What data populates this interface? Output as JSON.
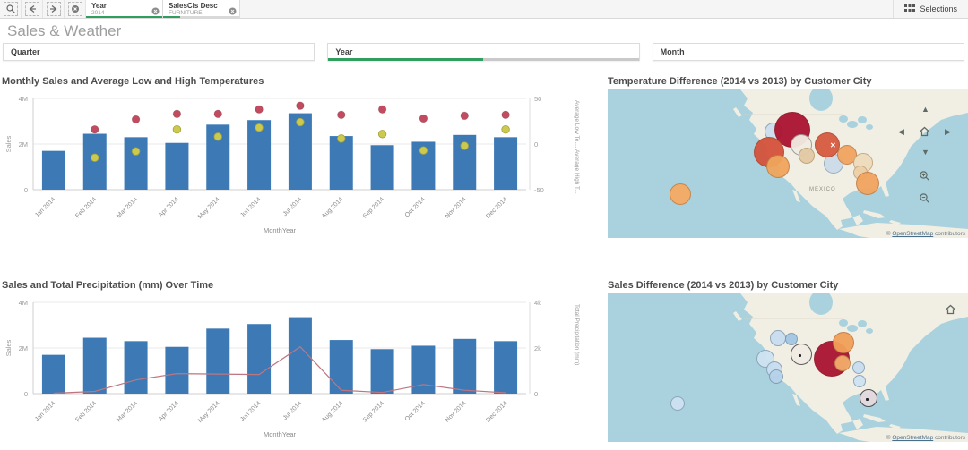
{
  "toolbar": {
    "selections_label": "Selections",
    "chips": [
      {
        "field": "Year",
        "value": "2014",
        "selected_ratio": 1.0
      },
      {
        "field": "SalesCls Desc",
        "value": "FURNITURE",
        "selected_ratio": 0.22
      }
    ]
  },
  "page": {
    "title": "Sales & Weather"
  },
  "filters": [
    {
      "label": "Quarter"
    },
    {
      "label": "Year",
      "selection_bar_ratio": 0.5
    },
    {
      "label": "Month"
    }
  ],
  "colors": {
    "bar": "#3d7ab5",
    "high_temp": "#c24b60",
    "low_temp": "#cbc94e",
    "low_temp_stroke": "#a3a23c",
    "precip_line": "#bd7680",
    "selection_green": "#2f9e5f",
    "sea": "#a9d2de",
    "land": "#f1eee4"
  },
  "chart_data": [
    {
      "type": "combo-bar-points",
      "title": "Monthly Sales and Average Low and High Temperatures",
      "categories": [
        "Jan 2014",
        "Feb 2014",
        "Mar 2014",
        "Apr 2014",
        "May 2014",
        "Jun 2014",
        "Jul 2014",
        "Aug 2014",
        "Sep 2014",
        "Oct 2014",
        "Nov 2014",
        "Dec 2014"
      ],
      "series": [
        {
          "name": "Sales",
          "type": "bar",
          "axis": "left",
          "values": [
            1700000,
            2450000,
            2300000,
            2050000,
            2850000,
            3050000,
            3350000,
            2350000,
            1950000,
            2100000,
            2400000,
            2300000
          ]
        },
        {
          "name": "Average High Temperature",
          "type": "point",
          "axis": "right",
          "values": [
            null,
            16,
            27,
            33,
            33,
            38,
            42,
            32,
            38,
            28,
            31,
            32
          ]
        },
        {
          "name": "Average Low Temperature",
          "type": "point",
          "axis": "right",
          "values": [
            null,
            -15,
            -8,
            16,
            8,
            18,
            24,
            6,
            11,
            -7,
            -2,
            16
          ]
        }
      ],
      "xlabel": "MonthYear",
      "ylabel_left": "Sales",
      "ylabel_right": "Average Low Te..., Average High T...",
      "ylim_left": [
        0,
        4000000
      ],
      "yticks_left": [
        "0",
        "2M",
        "4M"
      ],
      "ylim_right": [
        -50,
        50
      ],
      "yticks_right": [
        "-50",
        "0",
        "50"
      ],
      "grid": true,
      "legend": "none"
    },
    {
      "type": "map-bubbles",
      "title": "Temperature Difference (2014 vs 2013) by Customer City",
      "map_label": {
        "text": "MEXICO",
        "x": 225,
        "y": 109
      },
      "attribution": {
        "prefix": "© ",
        "link": "OpenStreetMap",
        "suffix": " contributors"
      },
      "selected_mark": {
        "x": 248,
        "y": 58
      },
      "bubbles": [
        {
          "x": 185,
          "y": 47,
          "r": 10,
          "color": "#ccdeed",
          "border": "#8aa4b8"
        },
        {
          "x": 206,
          "y": 45,
          "r": 20,
          "color": "#ab1230"
        },
        {
          "x": 180,
          "y": 70,
          "r": 17,
          "color": "#d4523b"
        },
        {
          "x": 190,
          "y": 86,
          "r": 13,
          "color": "#f0a55c"
        },
        {
          "x": 216,
          "y": 62,
          "r": 12,
          "color": "#f2ece2",
          "border": "#9a9a9a"
        },
        {
          "x": 222,
          "y": 74,
          "r": 9,
          "color": "#e4caa4",
          "border": "#bfa378"
        },
        {
          "x": 252,
          "y": 83,
          "r": 11,
          "color": "#cddcea",
          "border": "#93aabb"
        },
        {
          "x": 245,
          "y": 62,
          "r": 14,
          "color": "#d65b40"
        },
        {
          "x": 267,
          "y": 73,
          "r": 11,
          "color": "#f2a45f"
        },
        {
          "x": 285,
          "y": 82,
          "r": 11,
          "color": "#eedcbc",
          "border": "#c2a77f"
        },
        {
          "x": 282,
          "y": 93,
          "r": 8,
          "color": "#ecd0a8",
          "border": "#c2a77f"
        },
        {
          "x": 290,
          "y": 105,
          "r": 13,
          "color": "#f2a45f"
        },
        {
          "x": 81,
          "y": 117,
          "r": 12,
          "color": "#f5ab63"
        }
      ]
    },
    {
      "type": "combo-bar-line",
      "title": "Sales and Total Precipitation (mm) Over Time",
      "categories": [
        "Jan 2014",
        "Feb 2014",
        "Mar 2014",
        "Apr 2014",
        "May 2014",
        "Jun 2014",
        "Jul 2014",
        "Aug 2014",
        "Sep 2014",
        "Oct 2014",
        "Nov 2014",
        "Dec 2014"
      ],
      "series": [
        {
          "name": "Sales",
          "type": "bar",
          "axis": "left",
          "values": [
            1700000,
            2450000,
            2300000,
            2050000,
            2850000,
            3050000,
            3350000,
            2350000,
            1950000,
            2100000,
            2400000,
            2300000
          ]
        },
        {
          "name": "Total Precipitation (mm)",
          "type": "line",
          "axis": "right",
          "values": [
            20,
            100,
            600,
            880,
            860,
            840,
            2050,
            150,
            50,
            400,
            150,
            40
          ]
        }
      ],
      "xlabel": "MonthYear",
      "ylabel_left": "Sales",
      "ylabel_right": "Total Precipitation (mm)",
      "ylim_left": [
        0,
        4000000
      ],
      "yticks_left": [
        "0",
        "2M",
        "4M"
      ],
      "ylim_right": [
        0,
        4000
      ],
      "yticks_right": [
        "0",
        "2k",
        "4k"
      ],
      "grid": true,
      "legend": "none"
    },
    {
      "type": "map-bubbles",
      "title": "Sales Difference (2014 vs 2013) by Customer City",
      "attribution": {
        "prefix": "© ",
        "link": "OpenStreetMap",
        "suffix": " contributors"
      },
      "bubbles": [
        {
          "x": 190,
          "y": 50,
          "r": 9,
          "color": "#c9def1",
          "border": "#8aa4b8"
        },
        {
          "x": 205,
          "y": 51,
          "r": 7,
          "color": "#a4c6e2",
          "border": "#7d9cb5"
        },
        {
          "x": 176,
          "y": 73,
          "r": 10,
          "color": "#cfe3f2",
          "border": "#8aa4b8"
        },
        {
          "x": 186,
          "y": 85,
          "r": 9,
          "color": "#c9def1",
          "border": "#8aa4b8"
        },
        {
          "x": 188,
          "y": 93,
          "r": 8,
          "color": "#b7d2e9",
          "border": "#7d9cb5"
        },
        {
          "x": 216,
          "y": 68,
          "r": 12,
          "color": "#f0ebe3",
          "border": "#555555",
          "marker": "dot"
        },
        {
          "x": 250,
          "y": 73,
          "r": 20,
          "color": "#aa1331"
        },
        {
          "x": 263,
          "y": 55,
          "r": 12,
          "color": "#f2a158"
        },
        {
          "x": 262,
          "y": 78,
          "r": 9,
          "color": "#f4ad6b"
        },
        {
          "x": 280,
          "y": 83,
          "r": 7,
          "color": "#c9def1",
          "border": "#8aa4b8"
        },
        {
          "x": 281,
          "y": 98,
          "r": 7,
          "color": "#cfe3f2",
          "border": "#8aa4b8"
        },
        {
          "x": 291,
          "y": 117,
          "r": 10,
          "color": "#e5dade",
          "border": "#444444",
          "marker": "dot"
        },
        {
          "x": 78,
          "y": 123,
          "r": 8,
          "color": "#cde2f4",
          "border": "#8aa4b8"
        }
      ]
    }
  ]
}
